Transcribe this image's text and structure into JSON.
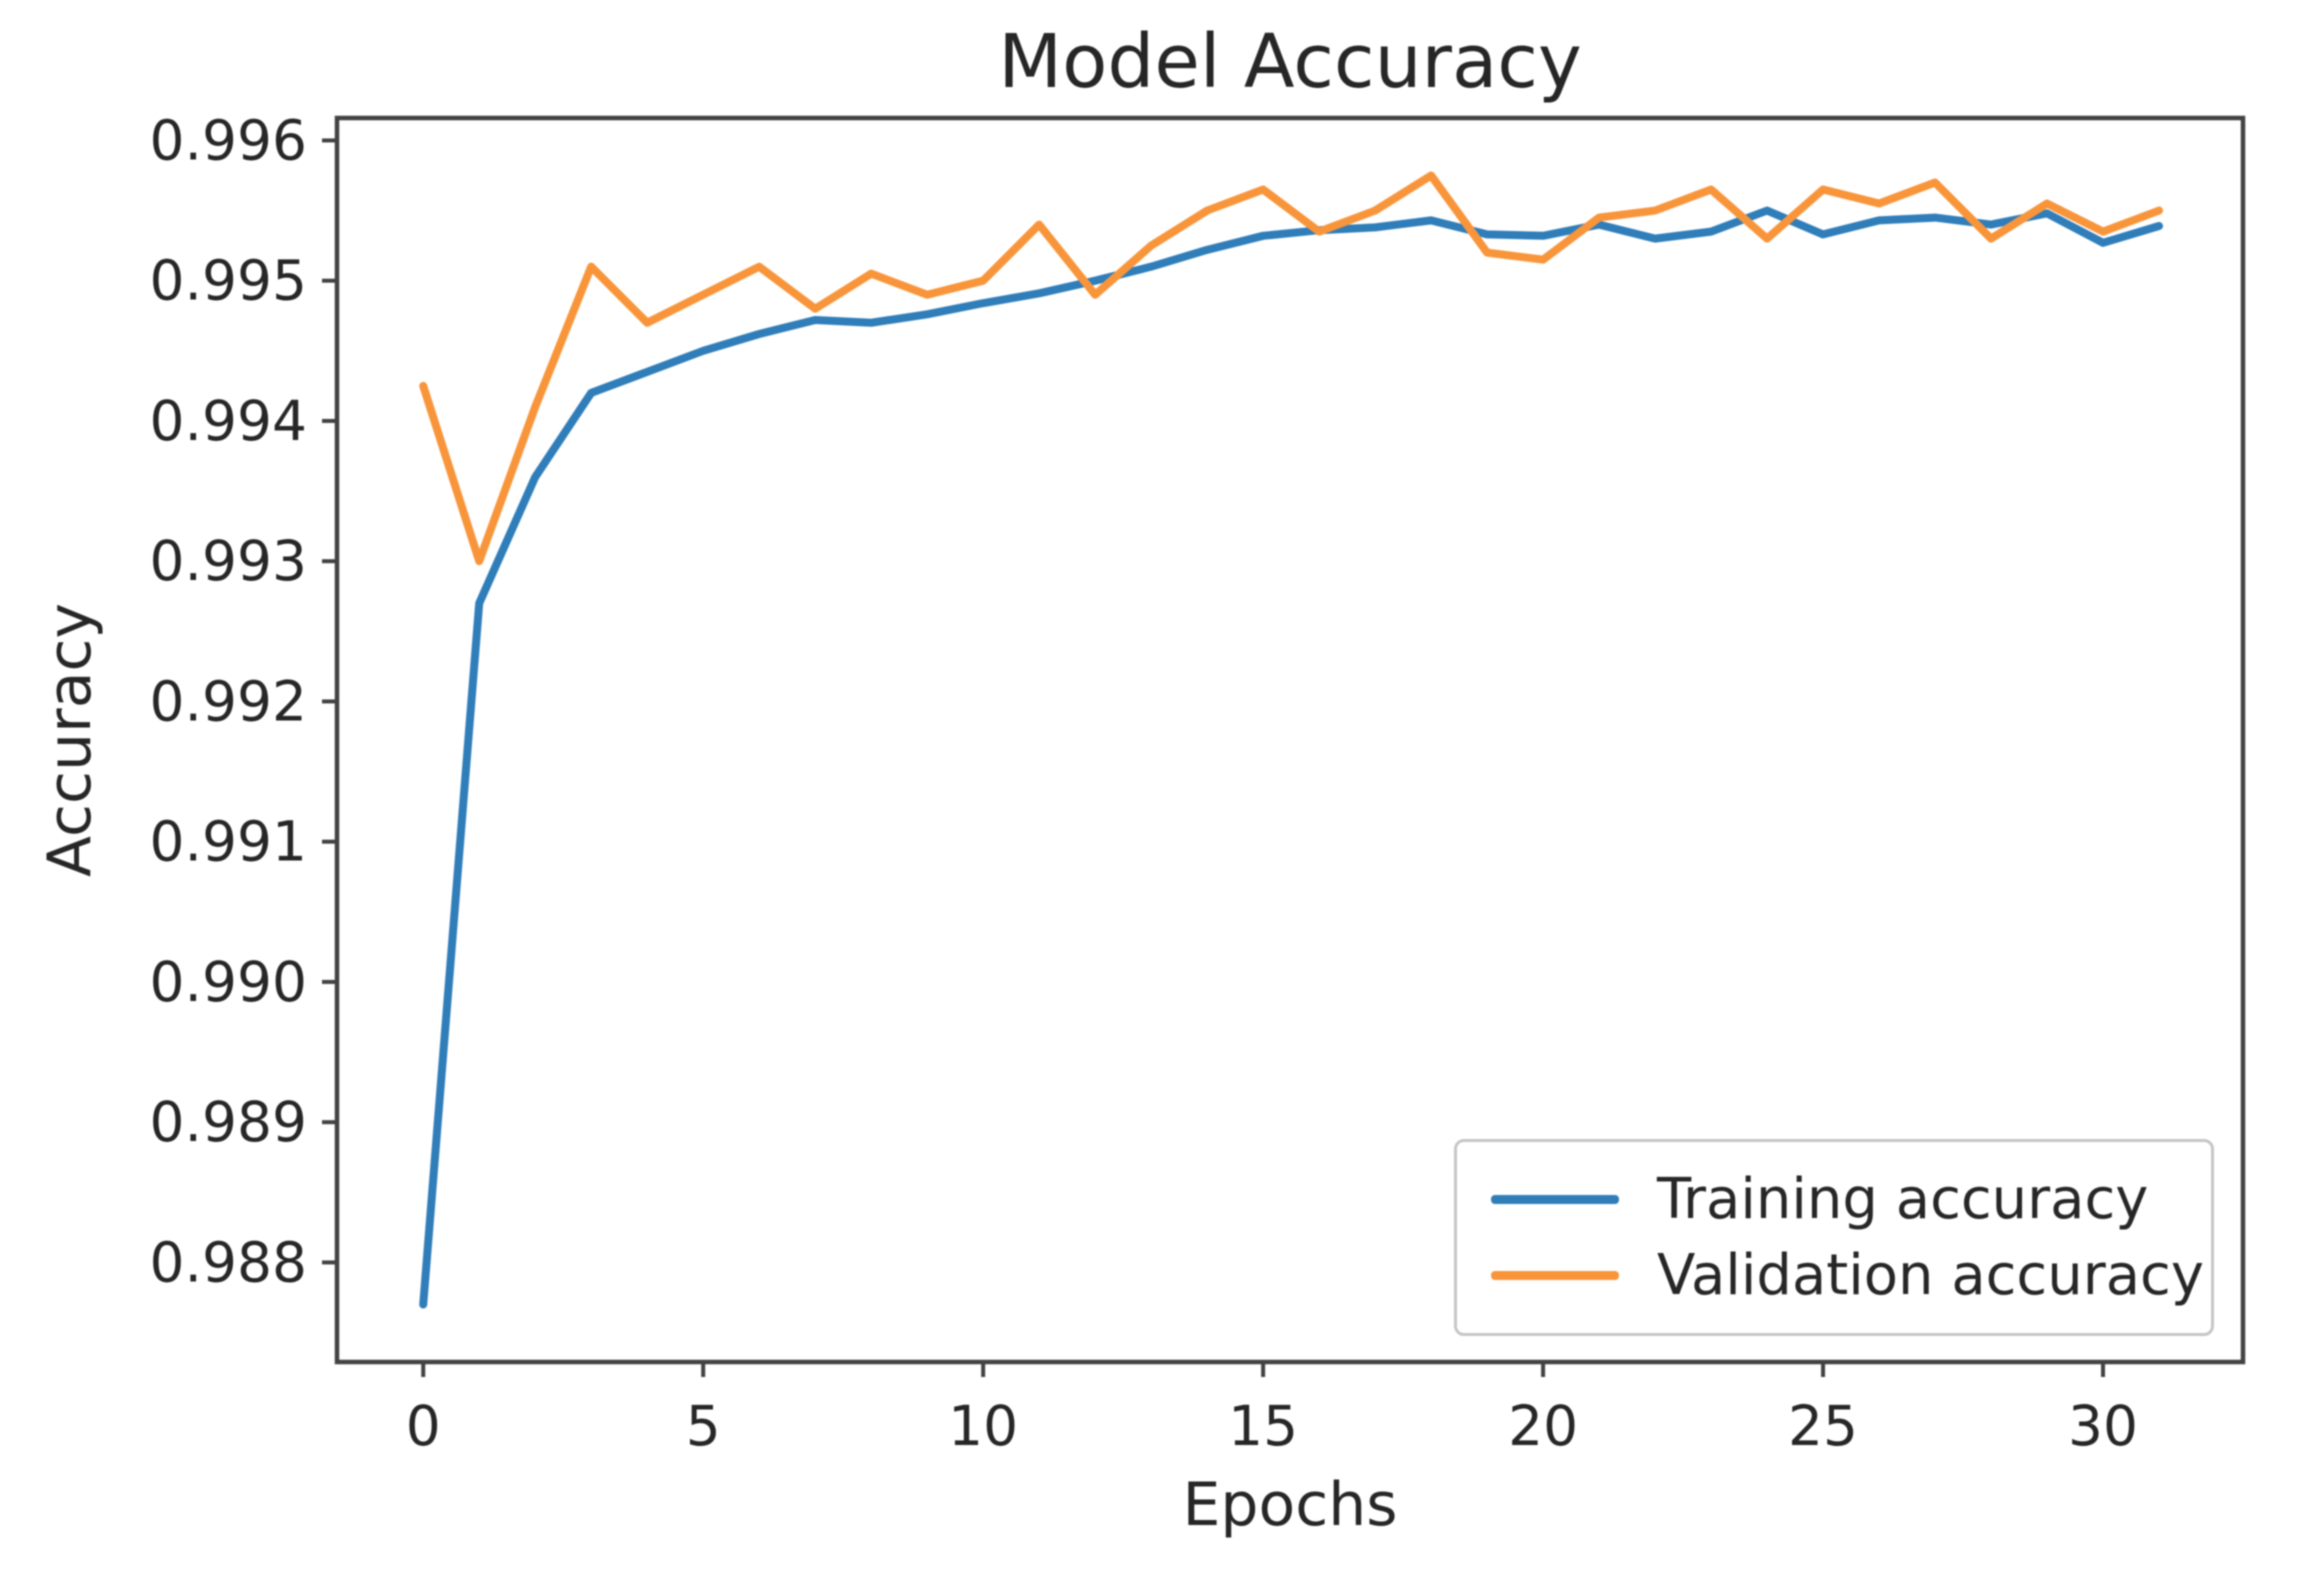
{
  "chart_data": {
    "type": "line",
    "title": "Model Accuracy",
    "xlabel": "Epochs",
    "ylabel": "Accuracy",
    "grid": false,
    "legend_position": "lower right",
    "xlim": [
      -1.54,
      32.5
    ],
    "ylim": [
      0.98729,
      0.99616
    ],
    "xticks": [
      0,
      5,
      10,
      15,
      20,
      25,
      30
    ],
    "yticks": [
      0.988,
      0.989,
      0.99,
      0.991,
      0.992,
      0.993,
      0.994,
      0.995,
      0.996
    ],
    "x": [
      0,
      1,
      2,
      3,
      4,
      5,
      6,
      7,
      8,
      9,
      10,
      11,
      12,
      13,
      14,
      15,
      16,
      17,
      18,
      19,
      20,
      21,
      22,
      23,
      24,
      25,
      26,
      27,
      28,
      29,
      30,
      31
    ],
    "series": [
      {
        "name": "Training accuracy",
        "color": "#2f7db9",
        "values": [
          0.9877,
          0.9927,
          0.9936,
          0.9942,
          0.99435,
          0.9945,
          0.99462,
          0.99472,
          0.9947,
          0.99476,
          0.99484,
          0.99491,
          0.995,
          0.9951,
          0.99522,
          0.99532,
          0.99536,
          0.99538,
          0.99543,
          0.99533,
          0.99532,
          0.9954,
          0.9953,
          0.99535,
          0.9955,
          0.99533,
          0.99543,
          0.99545,
          0.9954,
          0.99548,
          0.99527,
          0.99539
        ]
      },
      {
        "name": "Validation accuracy",
        "color": "#f8953b",
        "values": [
          0.99425,
          0.993,
          0.9941,
          0.9951,
          0.9947,
          0.9949,
          0.9951,
          0.9948,
          0.99505,
          0.9949,
          0.995,
          0.9954,
          0.9949,
          0.99525,
          0.9955,
          0.99565,
          0.99535,
          0.9955,
          0.99575,
          0.9952,
          0.99515,
          0.99545,
          0.9955,
          0.99565,
          0.9953,
          0.99565,
          0.99555,
          0.9957,
          0.9953,
          0.99555,
          0.99535,
          0.9955
        ]
      }
    ],
    "style": {
      "spine_color": "#424242",
      "tick_text_color": "#262626",
      "background": "#ffffff",
      "line_width": 8
    }
  }
}
